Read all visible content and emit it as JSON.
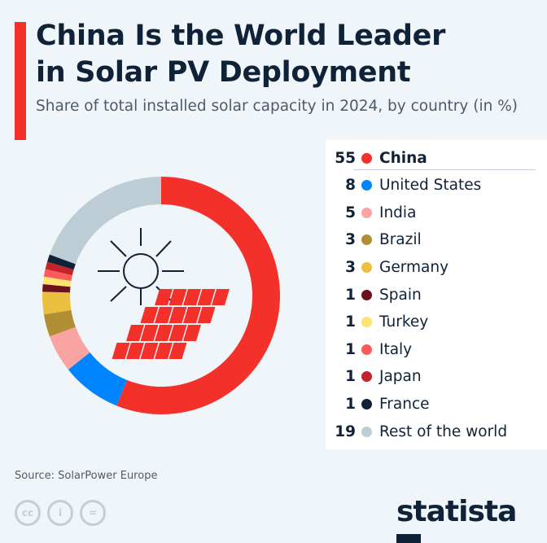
{
  "title": "China Is the World Leader in Solar PV Deployment",
  "title_line1": "China Is the World Leader",
  "title_line2": "in Solar PV Deployment",
  "subtitle": "Share of total installed solar capacity in 2024, by country (in %)",
  "source": "Source: SolarPower Europe",
  "brand": "statista",
  "chart_data": {
    "type": "pie",
    "variant": "donut",
    "title": "China Is the World Leader in Solar PV Deployment",
    "subtitle": "Share of total installed solar capacity in 2024, by country (in %)",
    "legend_position": "right",
    "categories": [
      "China",
      "United States",
      "India",
      "Brazil",
      "Germany",
      "Spain",
      "Turkey",
      "Italy",
      "Japan",
      "France",
      "Rest of the world"
    ],
    "values": [
      55,
      8,
      5,
      3,
      3,
      1,
      1,
      1,
      1,
      1,
      19
    ],
    "colors": [
      "#f4302b",
      "#0085ff",
      "#f9a3a3",
      "#b08e35",
      "#ecc03f",
      "#6b121a",
      "#fde36f",
      "#fd5a5a",
      "#c1242a",
      "#0f2237",
      "#bccdd5"
    ]
  }
}
